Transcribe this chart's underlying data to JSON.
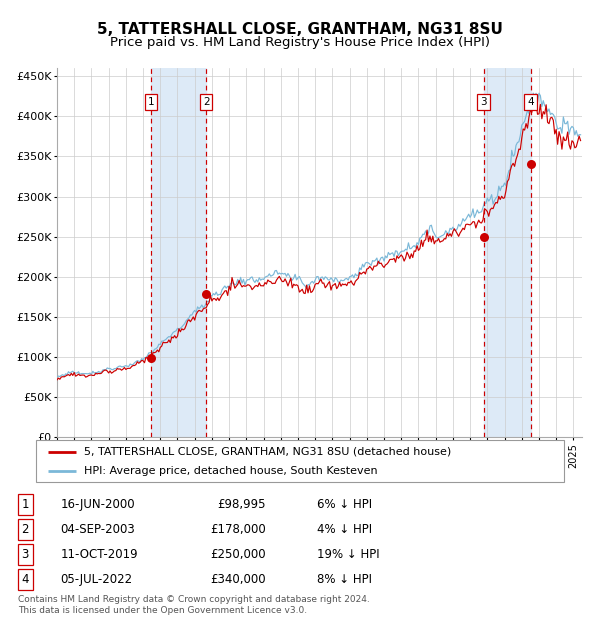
{
  "title": "5, TATTERSHALL CLOSE, GRANTHAM, NG31 8SU",
  "subtitle": "Price paid vs. HM Land Registry's House Price Index (HPI)",
  "xlim_start": 1995.0,
  "xlim_end": 2025.5,
  "ylim_min": 0,
  "ylim_max": 460000,
  "yticks": [
    0,
    50000,
    100000,
    150000,
    200000,
    250000,
    300000,
    350000,
    400000,
    450000
  ],
  "ytick_labels": [
    "£0",
    "£50K",
    "£100K",
    "£150K",
    "£200K",
    "£250K",
    "£300K",
    "£350K",
    "£400K",
    "£450K"
  ],
  "sale_dates": [
    2000.46,
    2003.67,
    2019.78,
    2022.51
  ],
  "sale_prices": [
    98995,
    178000,
    250000,
    340000
  ],
  "sale_labels": [
    "1",
    "2",
    "3",
    "4"
  ],
  "sale_pct": [
    "6%",
    "4%",
    "19%",
    "8%"
  ],
  "sale_date_strings": [
    "16-JUN-2000",
    "04-SEP-2003",
    "11-OCT-2019",
    "05-JUL-2022"
  ],
  "sale_price_strings": [
    "£98,995",
    "£178,000",
    "£250,000",
    "£340,000"
  ],
  "hpi_color": "#7bb8d8",
  "price_color": "#cc0000",
  "shade_color": "#ddeaf7",
  "grid_color": "#cccccc",
  "vline_color": "#cc0000",
  "legend_label_price": "5, TATTERSHALL CLOSE, GRANTHAM, NG31 8SU (detached house)",
  "legend_label_hpi": "HPI: Average price, detached house, South Kesteven",
  "footer1": "Contains HM Land Registry data © Crown copyright and database right 2024.",
  "footer2": "This data is licensed under the Open Government Licence v3.0.",
  "title_fontsize": 11,
  "subtitle_fontsize": 9.5,
  "axis_fontsize": 8,
  "legend_fontsize": 8,
  "table_fontsize": 8.5
}
